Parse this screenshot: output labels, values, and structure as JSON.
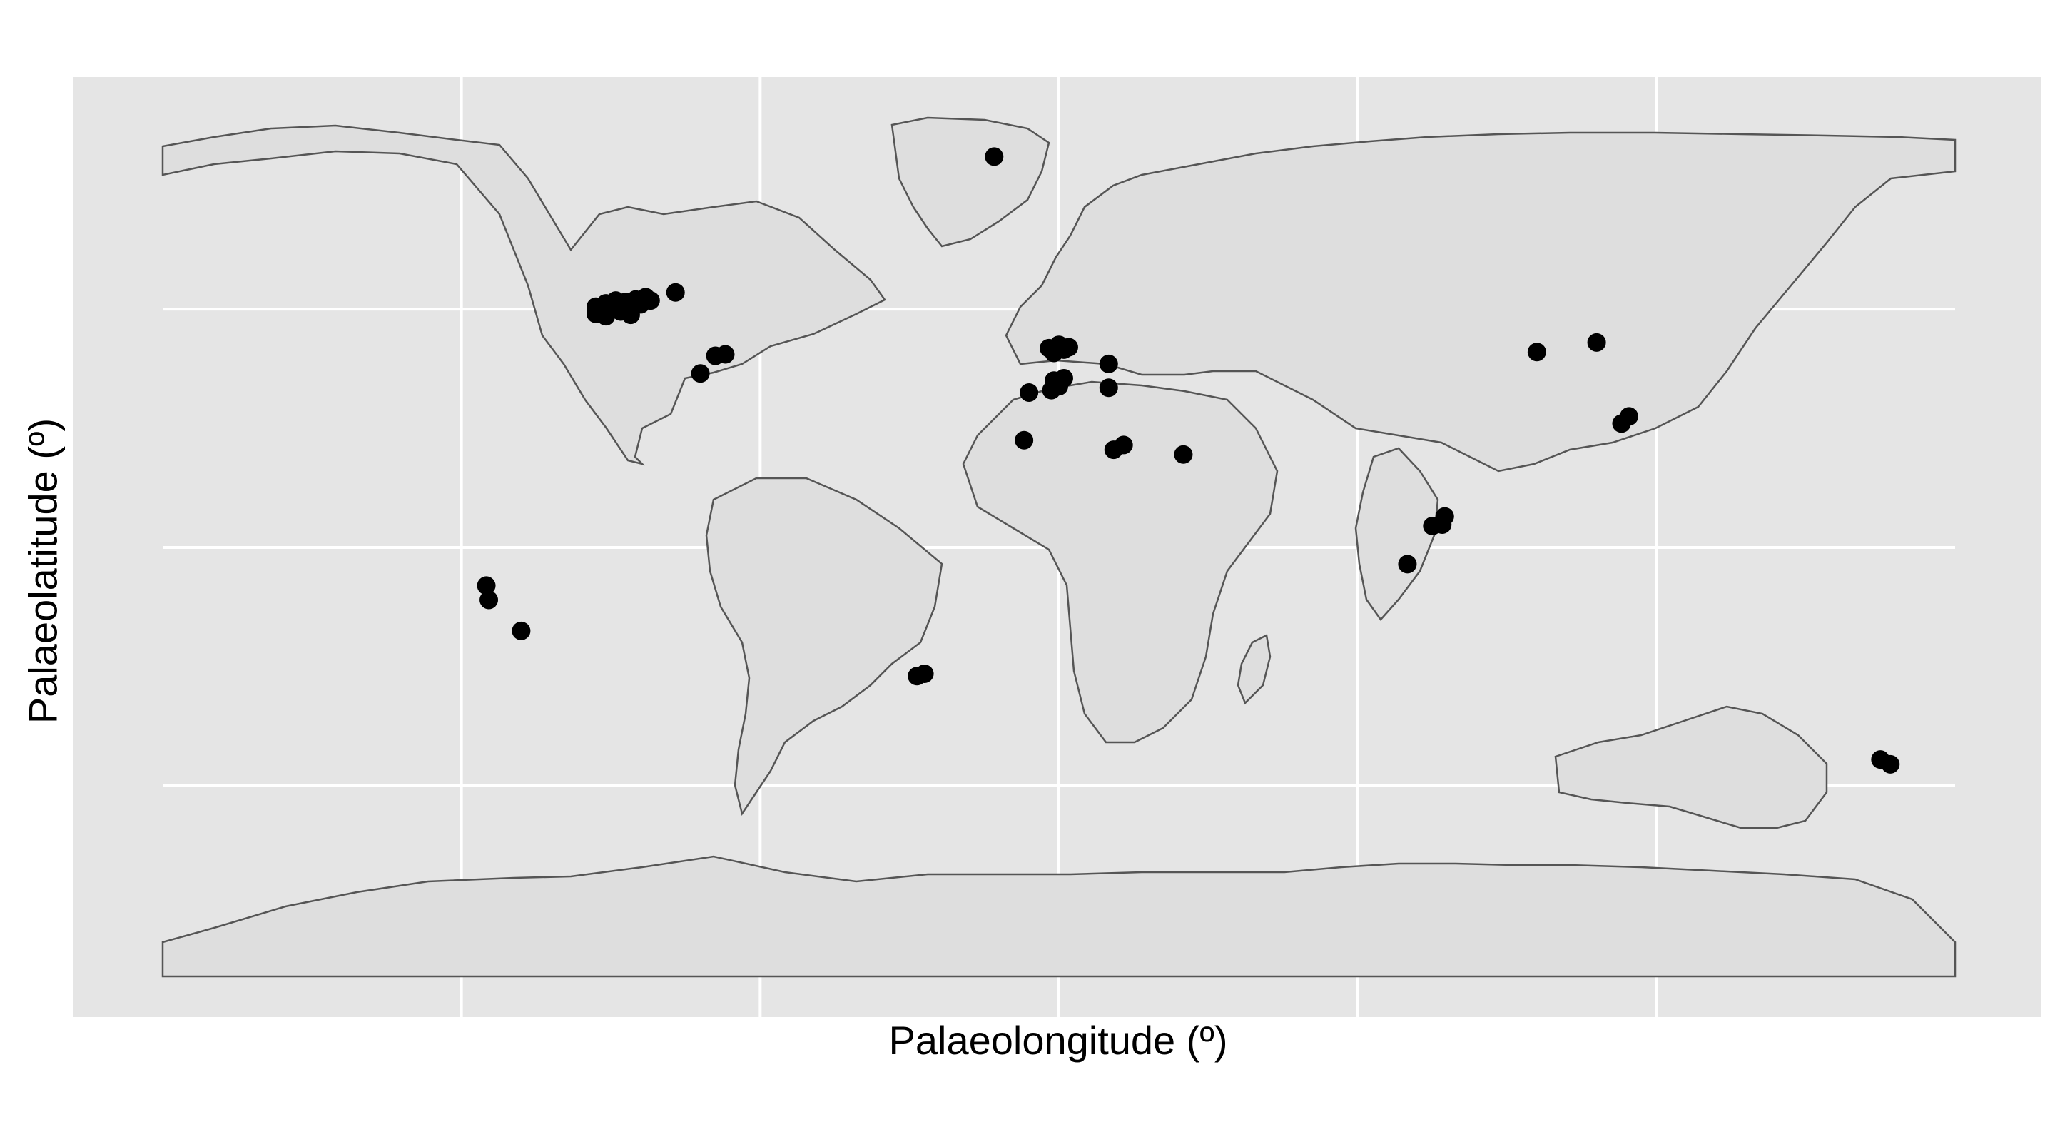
{
  "map": {
    "xlabel": "Palaeolongitude (º)",
    "ylabel": "Palaeolatitude (º)",
    "xlim": [
      -180,
      180
    ],
    "ylim": [
      -90,
      90
    ],
    "grid": true,
    "grid_lines_lon": [
      -120,
      -60,
      0,
      60,
      120
    ],
    "grid_lines_lat": [
      -50,
      0,
      50
    ],
    "colors": {
      "panel": "#e5e5e5",
      "grid": "#ffffff",
      "land_fill": "#dedede",
      "land_stroke": "#555555",
      "points": "#000000"
    },
    "occurrences": [
      {
        "lon": -13,
        "lat": 82
      },
      {
        "lon": -93,
        "lat": 50.5
      },
      {
        "lon": -92,
        "lat": 49.8
      },
      {
        "lon": -91,
        "lat": 51.2
      },
      {
        "lon": -90,
        "lat": 50.2
      },
      {
        "lon": -89,
        "lat": 51.8
      },
      {
        "lon": -88,
        "lat": 50.8
      },
      {
        "lon": -87,
        "lat": 51.5
      },
      {
        "lon": -86,
        "lat": 50
      },
      {
        "lon": -85,
        "lat": 52
      },
      {
        "lon": -84,
        "lat": 51
      },
      {
        "lon": -83,
        "lat": 52.5
      },
      {
        "lon": -82,
        "lat": 51.8
      },
      {
        "lon": -93,
        "lat": 49
      },
      {
        "lon": -91,
        "lat": 48.5
      },
      {
        "lon": -88,
        "lat": 49.5
      },
      {
        "lon": -86,
        "lat": 48.8
      },
      {
        "lon": -77,
        "lat": 53.5
      },
      {
        "lon": -72,
        "lat": 36.5
      },
      {
        "lon": -69,
        "lat": 40.2
      },
      {
        "lon": -67,
        "lat": 40.5
      },
      {
        "lon": -6,
        "lat": 32.5
      },
      {
        "lon": -2,
        "lat": 41.8
      },
      {
        "lon": -1,
        "lat": 40.8
      },
      {
        "lon": 0,
        "lat": 42.5
      },
      {
        "lon": 1,
        "lat": 41.5
      },
      {
        "lon": 2,
        "lat": 42
      },
      {
        "lon": -1,
        "lat": 35
      },
      {
        "lon": 0,
        "lat": 33.8
      },
      {
        "lon": -1.5,
        "lat": 33
      },
      {
        "lon": 1,
        "lat": 35.5
      },
      {
        "lon": 10,
        "lat": 38.5
      },
      {
        "lon": 10,
        "lat": 33.5
      },
      {
        "lon": -7,
        "lat": 22.5
      },
      {
        "lon": 11,
        "lat": 20.5
      },
      {
        "lon": 13,
        "lat": 21.5
      },
      {
        "lon": 25,
        "lat": 19.5
      },
      {
        "lon": -115,
        "lat": -8
      },
      {
        "lon": -114.5,
        "lat": -11
      },
      {
        "lon": -108,
        "lat": -17.5
      },
      {
        "lon": -28.5,
        "lat": -27
      },
      {
        "lon": -27,
        "lat": -26.5
      },
      {
        "lon": 70,
        "lat": -3.5
      },
      {
        "lon": 75,
        "lat": 4.5
      },
      {
        "lon": 77,
        "lat": 4.8
      },
      {
        "lon": 77.5,
        "lat": 6.5
      },
      {
        "lon": 96,
        "lat": 41
      },
      {
        "lon": 108,
        "lat": 43
      },
      {
        "lon": 113,
        "lat": 26
      },
      {
        "lon": 114.5,
        "lat": 27.5
      },
      {
        "lon": 165,
        "lat": -44.5
      },
      {
        "lon": 167,
        "lat": -45.5
      }
    ]
  }
}
